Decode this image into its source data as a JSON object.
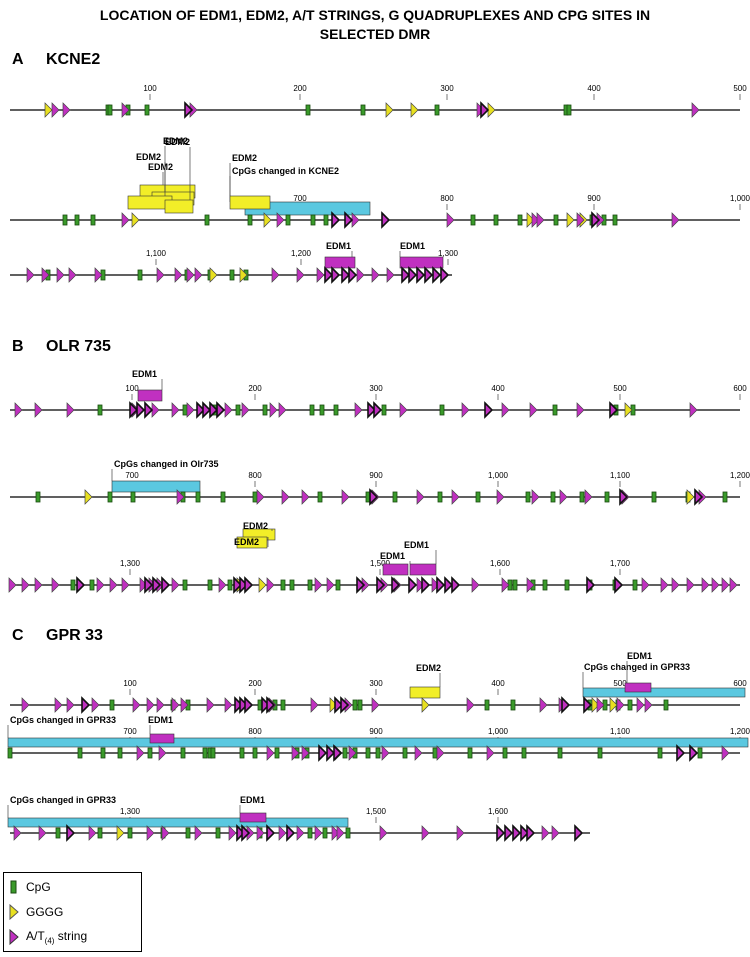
{
  "title": {
    "line1": "LOCATION OF EDM1, EDM2, A/T STRINGS, G QUADRUPLEXES AND CPG SITES IN",
    "line2": "SELECTED DMR"
  },
  "colors": {
    "cpg": "#3a9a2a",
    "gggg": "#e8e020",
    "at": "#c030c0",
    "edm1": "#c030c0",
    "edm2": "#f2ee28",
    "cpg_changed": "#5bc8e0"
  },
  "panels": [
    {
      "letter": "A",
      "name": "KCNE2",
      "tracks": [
        {
          "ticks": [
            "100",
            "200",
            "300",
            "400",
            "500"
          ],
          "cpg": [
            108,
            110,
            128,
            147,
            308,
            363,
            437,
            566,
            569
          ],
          "gggg": [
            48,
            389,
            414,
            491
          ],
          "at": [
            55,
            66,
            125,
            193,
            480,
            695
          ],
          "at_bold": [
            188,
            484
          ],
          "regions": []
        },
        {
          "ticks": [
            "700",
            "800",
            "900",
            "1,000"
          ],
          "cpg": [
            65,
            77,
            93,
            207,
            250,
            288,
            313,
            326,
            473,
            496,
            520,
            556,
            592,
            604,
            615
          ],
          "gggg": [
            135,
            267,
            530,
            570,
            583
          ],
          "at": [
            125,
            280,
            335,
            355,
            450,
            535,
            540,
            580,
            600,
            675
          ],
          "at_bold": [
            335,
            348,
            385,
            595,
            758
          ],
          "regions": [
            {
              "type": "edm2",
              "label": "EDM2",
              "y": 184
            },
            {
              "type": "edm2",
              "label": "EDM2",
              "y": 184
            },
            {
              "type": "edm2",
              "label": "EDM2",
              "y": 184
            },
            {
              "type": "edm2",
              "label": "EDM2",
              "y": 184
            },
            {
              "type": "cpg_changed",
              "label": "CpGs changed in KCNE2",
              "y": 200
            },
            {
              "type": "edm2",
              "label": "EDM2",
              "y": 200
            }
          ]
        },
        {
          "ticks": [
            "1,100",
            "1,200",
            "1,300"
          ],
          "cpg": [
            48,
            103,
            140,
            187,
            210,
            232,
            246
          ],
          "gggg": [
            213,
            243
          ],
          "at": [
            30,
            45,
            60,
            72,
            98,
            160,
            178,
            190,
            198,
            275,
            300,
            320,
            335,
            360,
            375,
            390
          ],
          "at_bold": [
            328,
            335,
            345,
            352,
            405,
            412,
            420,
            428,
            436,
            444
          ],
          "regions": [
            {
              "type": "edm1",
              "label": "EDM1"
            },
            {
              "type": "edm1",
              "label": "EDM1"
            }
          ]
        }
      ]
    },
    {
      "letter": "B",
      "name": "OLR 735",
      "tracks": [
        {
          "ticks": [
            "100",
            "200",
            "300",
            "400",
            "500",
            "600"
          ],
          "cpg": [
            100,
            185,
            215,
            238,
            265,
            312,
            322,
            336,
            384,
            442,
            555,
            616,
            633
          ],
          "gggg": [
            628
          ],
          "at": [
            18,
            38,
            70,
            135,
            155,
            175,
            190,
            228,
            245,
            273,
            282,
            358,
            403,
            465,
            505,
            533,
            580,
            693
          ],
          "at_bold": [
            133,
            140,
            148,
            200,
            206,
            213,
            220,
            371,
            377,
            488,
            613
          ],
          "regions": [
            {
              "type": "edm1",
              "label": "EDM1"
            }
          ]
        },
        {
          "ticks": [
            "700",
            "800",
            "900",
            "1,000",
            "1,100",
            "1,200"
          ],
          "cpg": [
            38,
            110,
            133,
            183,
            198,
            223,
            255,
            320,
            368,
            395,
            440,
            478,
            528,
            553,
            582,
            607,
            654,
            688,
            725
          ],
          "gggg": [
            88,
            690
          ],
          "at": [
            180,
            260,
            285,
            305,
            345,
            375,
            420,
            455,
            500,
            535,
            563,
            588,
            625,
            702
          ],
          "at_bold": [
            373,
            623,
            698
          ],
          "regions": [
            {
              "type": "cpg_changed",
              "label": "CpGs changed in Olr735"
            }
          ]
        },
        {
          "ticks": [
            "1,300",
            "1,500",
            "1,600",
            "1,700"
          ],
          "cpg": [
            73,
            92,
            155,
            185,
            210,
            230,
            283,
            292,
            310,
            338,
            510,
            515,
            533,
            545,
            567,
            590,
            615,
            635
          ],
          "gggg": [
            240,
            262
          ],
          "at": [
            12,
            25,
            38,
            55,
            100,
            113,
            125,
            143,
            152,
            160,
            175,
            222,
            270,
            318,
            330,
            365,
            384,
            397,
            420,
            435,
            475,
            505,
            530,
            645,
            664,
            675,
            690,
            705,
            715,
            725,
            733
          ],
          "at_bold": [
            80,
            148,
            156,
            165,
            237,
            243,
            248,
            360,
            380,
            395,
            412,
            425,
            440,
            448,
            455,
            590,
            618
          ],
          "regions": [
            {
              "type": "edm2",
              "label": "EDM2"
            },
            {
              "type": "edm2",
              "label": "EDM2"
            },
            {
              "type": "edm1",
              "label": "EDM1"
            },
            {
              "type": "edm1",
              "label": "EDM1"
            }
          ]
        }
      ]
    },
    {
      "letter": "C",
      "name": "GPR 33",
      "tracks": [
        {
          "ticks": [
            "100",
            "200",
            "300",
            "400",
            "500",
            "600"
          ],
          "cpg": [
            112,
            173,
            188,
            260,
            275,
            283,
            355,
            360,
            487,
            513,
            590,
            605,
            618,
            630,
            666
          ],
          "gggg": [
            333,
            425,
            595,
            613
          ],
          "at": [
            25,
            58,
            70,
            95,
            136,
            150,
            160,
            175,
            184,
            210,
            228,
            272,
            314,
            348,
            375,
            470,
            543,
            562,
            600,
            620,
            640,
            648
          ],
          "at_bold": [
            85,
            238,
            243,
            248,
            265,
            270,
            338,
            344,
            565,
            587
          ],
          "regions": [
            {
              "type": "edm2",
              "label": "EDM2"
            },
            {
              "type": "cpg_changed",
              "label": "CpGs changed in GPR33"
            },
            {
              "type": "edm1",
              "label": "EDM1"
            }
          ]
        },
        {
          "ticks": [
            "700",
            "800",
            "900",
            "1,000",
            "1,100",
            "1,200"
          ],
          "cpg": [
            10,
            80,
            103,
            120,
            150,
            183,
            205,
            210,
            213,
            242,
            255,
            277,
            297,
            307,
            345,
            355,
            368,
            378,
            405,
            435,
            470,
            505,
            524,
            560,
            600,
            660,
            700
          ],
          "gggg": [],
          "at": [
            140,
            162,
            270,
            295,
            305,
            338,
            352,
            385,
            418,
            440,
            490,
            725
          ],
          "at_bold": [
            322,
            330,
            337,
            680,
            693
          ],
          "regions": [
            {
              "type": "cpg_changed",
              "label": "CpGs changed in GPR33"
            },
            {
              "type": "edm1",
              "label": "EDM1"
            }
          ]
        },
        {
          "ticks": [
            "1,300",
            "1,500",
            "1,600"
          ],
          "cpg": [
            58,
            100,
            130,
            163,
            188,
            218,
            260,
            310,
            325,
            348
          ],
          "gggg": [
            120
          ],
          "at": [
            17,
            42,
            92,
            150,
            165,
            198,
            232,
            250,
            260,
            282,
            300,
            318,
            335,
            340,
            383,
            425,
            460,
            530,
            545,
            555
          ],
          "at_bold": [
            70,
            240,
            245,
            270,
            290,
            500,
            508,
            516,
            524,
            530,
            578
          ],
          "regions": [
            {
              "type": "cpg_changed",
              "label": "CpGs changed in GPR33"
            },
            {
              "type": "edm1",
              "label": "EDM1"
            }
          ]
        }
      ]
    }
  ],
  "legend": {
    "cpg": "CpG",
    "gggg": "GGGG",
    "at": "A/T",
    "at_sub": "(4)",
    "at_suffix": " string"
  }
}
